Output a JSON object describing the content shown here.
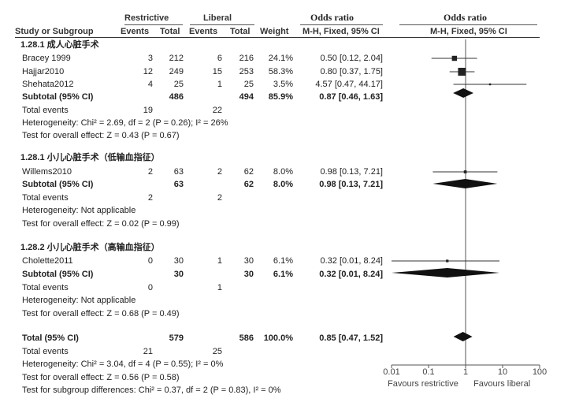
{
  "header": {
    "col_study": "Study or Subgroup",
    "group1": "Restrictive",
    "group2": "Liberal",
    "events": "Events",
    "total": "Total",
    "weight": "Weight",
    "or_title_table": "Odds ratio",
    "or_method_table": "M-H, Fixed, 95% CI",
    "or_title_plot": "Odds ratio",
    "or_method_plot": "M-H, Fixed, 95% CI"
  },
  "subgroups": [
    {
      "title": "1.28.1 成人心脏手术",
      "studies": [
        {
          "name": "Bracey 1999",
          "e1": "3",
          "n1": "212",
          "e2": "6",
          "n2": "216",
          "weight": "24.1%",
          "ci": "0.50 [0.12, 2.04]"
        },
        {
          "name": "Hajjar2010",
          "e1": "12",
          "n1": "249",
          "e2": "15",
          "n2": "253",
          "weight": "58.3%",
          "ci": "0.80 [0.37, 1.75]"
        },
        {
          "name": "Shehata2012",
          "e1": "4",
          "n1": "25",
          "e2": "1",
          "n2": "25",
          "weight": "3.5%",
          "ci": "4.57 [0.47, 44.17]"
        }
      ],
      "subtotal": {
        "label": "Subtotal (95% CI)",
        "n1": "486",
        "n2": "494",
        "weight": "85.9%",
        "ci": "0.87 [0.46, 1.63]"
      },
      "total_events": {
        "label": "Total events",
        "e1": "19",
        "e2": "22"
      },
      "heterogeneity": "Heterogeneity: Chi² = 2.69, df = 2 (P = 0.26); I² = 26%",
      "overall": "Test for overall effect: Z = 0.43 (P = 0.67)"
    },
    {
      "title": "1.28.1 小儿心脏手术（低输血指征）",
      "studies": [
        {
          "name": "Willems2010",
          "e1": "2",
          "n1": "63",
          "e2": "2",
          "n2": "62",
          "weight": "8.0%",
          "ci": "0.98 [0.13, 7.21]"
        }
      ],
      "subtotal": {
        "label": "Subtotal (95% CI)",
        "n1": "63",
        "n2": "62",
        "weight": "8.0%",
        "ci": "0.98 [0.13, 7.21]"
      },
      "total_events": {
        "label": "Total events",
        "e1": "2",
        "e2": "2"
      },
      "heterogeneity": "Heterogeneity: Not applicable",
      "overall": "Test for overall effect: Z = 0.02 (P = 0.99)"
    },
    {
      "title": "1.28.2 小儿心脏手术（高输血指征）",
      "studies": [
        {
          "name": "Cholette2011",
          "e1": "0",
          "n1": "30",
          "e2": "1",
          "n2": "30",
          "weight": "6.1%",
          "ci": "0.32 [0.01, 8.24]"
        }
      ],
      "subtotal": {
        "label": "Subtotal (95% CI)",
        "n1": "30",
        "n2": "30",
        "weight": "6.1%",
        "ci": "0.32 [0.01, 8.24]"
      },
      "total_events": {
        "label": "Total events",
        "e1": "0",
        "e2": "1"
      },
      "heterogeneity": "Heterogeneity: Not applicable",
      "overall": "Test for overall effect: Z = 0.68 (P = 0.49)"
    }
  ],
  "total": {
    "label": "Total (95% CI)",
    "n1": "579",
    "n2": "586",
    "weight": "100.0%",
    "ci": "0.85 [0.47, 1.52]",
    "events_label": "Total events",
    "e1": "21",
    "e2": "25",
    "heterogeneity": "Heterogeneity: Chi² = 3.04, df = 4 (P = 0.55); I² = 0%",
    "overall": "Test for overall effect: Z = 0.56 (P = 0.58)",
    "subgroup_diff": "Test for subgroup differences: Chi² = 0.37, df = 2 (P = 0.83), I² = 0%"
  },
  "axis": {
    "ticks": [
      "0.01",
      "0.1",
      "1",
      "10",
      "100"
    ],
    "favours_left": "Favours restrictive",
    "favours_right": "Favours liberal"
  },
  "chart_data": {
    "type": "forest",
    "scale": "log",
    "xlim": [
      0.01,
      100
    ],
    "reference": 1,
    "ticks": [
      0.01,
      0.1,
      1,
      10,
      100
    ],
    "studies": [
      {
        "name": "Bracey 1999",
        "or": 0.5,
        "lo": 0.12,
        "hi": 2.04,
        "weight": 24.1
      },
      {
        "name": "Hajjar2010",
        "or": 0.8,
        "lo": 0.37,
        "hi": 1.75,
        "weight": 58.3
      },
      {
        "name": "Shehata2012",
        "or": 4.57,
        "lo": 0.47,
        "hi": 44.17,
        "weight": 3.5
      },
      {
        "name": "Willems2010",
        "or": 0.98,
        "lo": 0.13,
        "hi": 7.21,
        "weight": 8.0
      },
      {
        "name": "Cholette2011",
        "or": 0.32,
        "lo": 0.01,
        "hi": 8.24,
        "weight": 6.1
      }
    ],
    "diamonds": [
      {
        "name": "Subtotal 1.28.1 成人心脏手术",
        "or": 0.87,
        "lo": 0.46,
        "hi": 1.63
      },
      {
        "name": "Subtotal 1.28.1 小儿心脏手术（低输血指征）",
        "or": 0.98,
        "lo": 0.13,
        "hi": 7.21
      },
      {
        "name": "Subtotal 1.28.2 小儿心脏手术（高输血指征）",
        "or": 0.32,
        "lo": 0.01,
        "hi": 8.24
      },
      {
        "name": "Total (95% CI)",
        "or": 0.85,
        "lo": 0.47,
        "hi": 1.52
      }
    ]
  }
}
